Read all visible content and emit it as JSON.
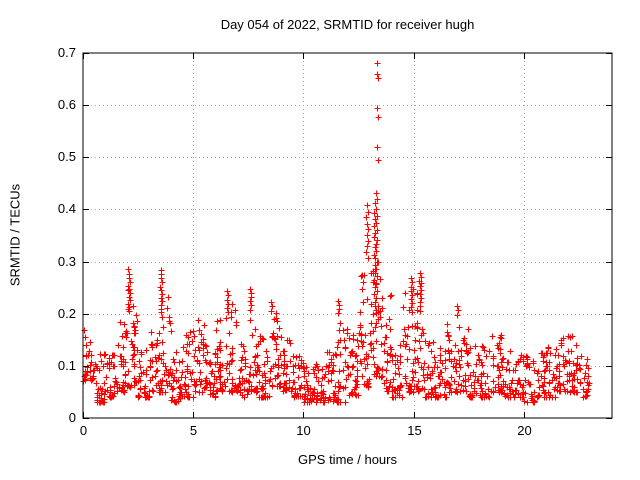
{
  "figure": {
    "background": "#ffffff",
    "text_color": "#000000",
    "border_color": "#000000",
    "grid_color": "#a8a8a8"
  },
  "chart_data": {
    "type": "scatter",
    "title": "Day 054 of 2022, SRMTID for receiver hugh",
    "xlabel": "GPS time / hours",
    "ylabel": "SRMTID / TECUs",
    "series_name": "SRMTID",
    "marker": {
      "shape": "plus",
      "color": "#ff0000",
      "size": 7
    },
    "xlim": [
      0,
      24
    ],
    "ylim": [
      0,
      0.7
    ],
    "xtick_values": [
      0,
      5,
      10,
      15,
      20
    ],
    "xtick_labels": [
      "0",
      "5",
      "10",
      "15",
      "20"
    ],
    "ytick_values": [
      0,
      0.1,
      0.2,
      0.3,
      0.4,
      0.5,
      0.6,
      0.7
    ],
    "ytick_labels": [
      "0",
      "0.1",
      "0.2",
      "0.3",
      "0.4",
      "0.5",
      "0.6",
      "0.7"
    ],
    "grid": true,
    "legend": "none",
    "seed": 54,
    "density_bins": [
      [
        0.0,
        0.5,
        0.07,
        0.17,
        30
      ],
      [
        0.5,
        1.0,
        0.03,
        0.13,
        32
      ],
      [
        1.0,
        1.5,
        0.04,
        0.13,
        30
      ],
      [
        1.5,
        2.0,
        0.05,
        0.19,
        30
      ],
      [
        2.0,
        2.5,
        0.06,
        0.25,
        34
      ],
      [
        2.5,
        3.0,
        0.04,
        0.14,
        30
      ],
      [
        3.0,
        3.5,
        0.05,
        0.17,
        30
      ],
      [
        3.5,
        4.0,
        0.05,
        0.24,
        32
      ],
      [
        4.0,
        4.5,
        0.03,
        0.13,
        30
      ],
      [
        4.5,
        5.0,
        0.04,
        0.18,
        30
      ],
      [
        5.0,
        5.5,
        0.05,
        0.21,
        32
      ],
      [
        5.5,
        6.0,
        0.04,
        0.16,
        30
      ],
      [
        6.0,
        6.5,
        0.05,
        0.19,
        32
      ],
      [
        6.5,
        7.0,
        0.05,
        0.22,
        30
      ],
      [
        7.0,
        7.5,
        0.04,
        0.15,
        30
      ],
      [
        7.5,
        8.0,
        0.05,
        0.22,
        32
      ],
      [
        8.0,
        8.5,
        0.04,
        0.16,
        30
      ],
      [
        8.5,
        9.0,
        0.06,
        0.21,
        32
      ],
      [
        9.0,
        9.5,
        0.05,
        0.15,
        30
      ],
      [
        9.5,
        10.0,
        0.04,
        0.12,
        28
      ],
      [
        10.0,
        10.5,
        0.03,
        0.1,
        30
      ],
      [
        10.5,
        11.0,
        0.03,
        0.11,
        30
      ],
      [
        11.0,
        11.5,
        0.03,
        0.13,
        28
      ],
      [
        11.5,
        12.0,
        0.03,
        0.19,
        32
      ],
      [
        12.0,
        12.5,
        0.04,
        0.16,
        34
      ],
      [
        12.5,
        13.0,
        0.06,
        0.3,
        36
      ],
      [
        13.0,
        13.5,
        0.08,
        0.3,
        36
      ],
      [
        13.5,
        14.0,
        0.05,
        0.24,
        32
      ],
      [
        14.0,
        14.5,
        0.04,
        0.14,
        30
      ],
      [
        14.5,
        15.0,
        0.05,
        0.25,
        32
      ],
      [
        15.0,
        15.5,
        0.05,
        0.26,
        32
      ],
      [
        15.5,
        16.0,
        0.04,
        0.17,
        30
      ],
      [
        16.0,
        16.5,
        0.04,
        0.14,
        28
      ],
      [
        16.5,
        17.0,
        0.05,
        0.2,
        30
      ],
      [
        17.0,
        17.5,
        0.05,
        0.21,
        30
      ],
      [
        17.5,
        18.0,
        0.04,
        0.15,
        28
      ],
      [
        18.0,
        18.5,
        0.04,
        0.14,
        28
      ],
      [
        18.5,
        19.0,
        0.05,
        0.17,
        30
      ],
      [
        19.0,
        19.5,
        0.04,
        0.13,
        28
      ],
      [
        19.5,
        20.0,
        0.04,
        0.12,
        28
      ],
      [
        20.0,
        20.5,
        0.03,
        0.12,
        28
      ],
      [
        20.5,
        21.0,
        0.04,
        0.13,
        28
      ],
      [
        21.0,
        21.5,
        0.04,
        0.14,
        28
      ],
      [
        21.5,
        22.0,
        0.05,
        0.16,
        30
      ],
      [
        22.0,
        22.5,
        0.05,
        0.165,
        30
      ],
      [
        22.5,
        22.95,
        0.04,
        0.12,
        26
      ]
    ],
    "peak_points": [
      [
        13.36,
        0.681
      ],
      [
        13.35,
        0.66
      ],
      [
        13.38,
        0.652
      ],
      [
        13.36,
        0.594
      ],
      [
        13.38,
        0.577
      ],
      [
        13.36,
        0.52
      ],
      [
        13.38,
        0.495
      ],
      [
        13.3,
        0.431
      ],
      [
        13.33,
        0.42
      ],
      [
        13.25,
        0.412
      ],
      [
        13.28,
        0.401
      ],
      [
        13.21,
        0.393
      ],
      [
        13.34,
        0.388
      ],
      [
        13.24,
        0.381
      ],
      [
        13.29,
        0.374
      ],
      [
        13.19,
        0.368
      ],
      [
        13.32,
        0.361
      ],
      [
        13.26,
        0.354
      ],
      [
        13.22,
        0.347
      ],
      [
        13.35,
        0.341
      ],
      [
        13.28,
        0.334
      ],
      [
        13.24,
        0.327
      ],
      [
        13.31,
        0.32
      ],
      [
        13.2,
        0.313
      ],
      [
        13.27,
        0.306
      ],
      [
        13.36,
        0.3
      ],
      [
        13.23,
        0.293
      ],
      [
        13.3,
        0.286
      ],
      [
        13.25,
        0.279
      ],
      [
        13.33,
        0.272
      ],
      [
        13.21,
        0.265
      ],
      [
        13.29,
        0.258
      ],
      [
        13.26,
        0.251
      ],
      [
        13.34,
        0.244
      ],
      [
        13.22,
        0.237
      ],
      [
        13.3,
        0.23
      ],
      [
        13.27,
        0.222
      ],
      [
        13.24,
        0.215
      ],
      [
        13.31,
        0.208
      ],
      [
        13.28,
        0.201
      ],
      [
        12.88,
        0.408
      ],
      [
        12.92,
        0.396
      ],
      [
        12.85,
        0.385
      ],
      [
        12.9,
        0.373
      ],
      [
        12.95,
        0.362
      ],
      [
        12.87,
        0.351
      ],
      [
        12.93,
        0.34
      ],
      [
        12.89,
        0.329
      ],
      [
        12.84,
        0.318
      ],
      [
        12.94,
        0.307
      ],
      [
        2.06,
        0.285
      ],
      [
        2.1,
        0.277
      ],
      [
        2.08,
        0.268
      ],
      [
        2.12,
        0.261
      ],
      [
        2.05,
        0.254
      ],
      [
        2.09,
        0.247
      ],
      [
        2.13,
        0.24
      ],
      [
        2.07,
        0.233
      ],
      [
        2.11,
        0.226
      ],
      [
        2.04,
        0.219
      ],
      [
        2.1,
        0.212
      ],
      [
        2.08,
        0.205
      ],
      [
        3.52,
        0.284
      ],
      [
        3.56,
        0.276
      ],
      [
        3.54,
        0.268
      ],
      [
        3.58,
        0.26
      ],
      [
        3.51,
        0.252
      ],
      [
        3.55,
        0.245
      ],
      [
        3.59,
        0.238
      ],
      [
        3.53,
        0.231
      ],
      [
        3.57,
        0.224
      ],
      [
        3.55,
        0.217
      ],
      [
        3.52,
        0.21
      ],
      [
        3.56,
        0.203
      ],
      [
        6.52,
        0.243
      ],
      [
        6.56,
        0.235
      ],
      [
        6.54,
        0.227
      ],
      [
        6.58,
        0.219
      ],
      [
        6.53,
        0.211
      ],
      [
        6.57,
        0.204
      ],
      [
        7.58,
        0.248
      ],
      [
        7.62,
        0.24
      ],
      [
        7.6,
        0.232
      ],
      [
        7.56,
        0.224
      ],
      [
        7.61,
        0.216
      ],
      [
        7.59,
        0.208
      ],
      [
        8.52,
        0.222
      ],
      [
        8.56,
        0.214
      ],
      [
        8.54,
        0.206
      ],
      [
        11.58,
        0.225
      ],
      [
        11.62,
        0.217
      ],
      [
        11.6,
        0.209
      ],
      [
        11.56,
        0.201
      ],
      [
        14.88,
        0.268
      ],
      [
        14.92,
        0.26
      ],
      [
        14.86,
        0.252
      ],
      [
        14.9,
        0.244
      ],
      [
        14.94,
        0.236
      ],
      [
        14.88,
        0.228
      ],
      [
        14.92,
        0.22
      ],
      [
        14.89,
        0.212
      ],
      [
        14.91,
        0.204
      ],
      [
        15.28,
        0.278
      ],
      [
        15.32,
        0.27
      ],
      [
        15.26,
        0.262
      ],
      [
        15.3,
        0.254
      ],
      [
        15.34,
        0.246
      ],
      [
        15.28,
        0.238
      ],
      [
        15.32,
        0.23
      ],
      [
        15.29,
        0.222
      ],
      [
        15.31,
        0.214
      ],
      [
        15.27,
        0.206
      ],
      [
        16.98,
        0.214
      ],
      [
        17.02,
        0.207
      ]
    ]
  }
}
